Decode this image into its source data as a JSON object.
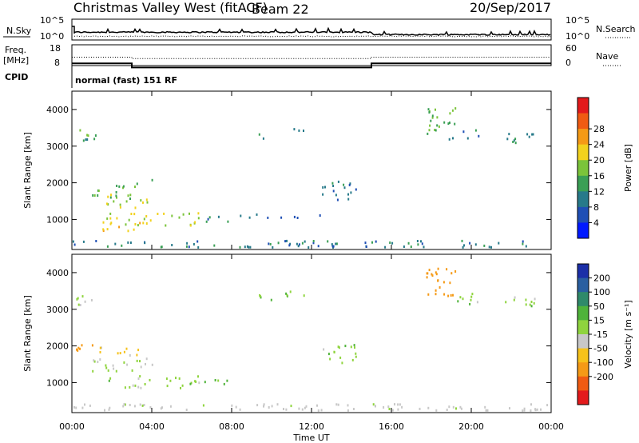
{
  "header": {
    "station": "Christmas Valley West (fitACF)",
    "beam": "Beam 22",
    "date": "20/Sep/2017"
  },
  "nsky_panel": {
    "label": "N.Sky",
    "right_label": "N.Search",
    "left_ticks": [
      "10^5",
      "10^0"
    ],
    "right_ticks": [
      "10^5",
      "10^0"
    ]
  },
  "freq_panel": {
    "label_line1": "Freq.",
    "label_line2": "[MHz]",
    "left_ticks": [
      "18",
      "8"
    ],
    "right_ticks": [
      "60",
      "0"
    ],
    "right_label": "Nave",
    "freq_mhz": [
      {
        "t": 0,
        "v": 11
      },
      {
        "t": 3,
        "v": 11
      },
      {
        "t": 3,
        "v": 9
      },
      {
        "t": 15,
        "v": 9
      },
      {
        "t": 15,
        "v": 11
      },
      {
        "t": 24,
        "v": 11
      }
    ],
    "nave": [
      {
        "t": 0,
        "v": 22
      },
      {
        "t": 3,
        "v": 22
      },
      {
        "t": 3,
        "v": 18
      },
      {
        "t": 15,
        "v": 18
      },
      {
        "t": 15,
        "v": 22
      },
      {
        "t": 24,
        "v": 22
      }
    ]
  },
  "cpid": {
    "label": "CPID",
    "text": "normal (fast) 151 RF"
  },
  "chart_data": [
    {
      "type": "heatmap",
      "name": "power",
      "xlabel": "Time UT",
      "ylabel": "Slant Range [km]",
      "xlim": [
        0,
        24
      ],
      "ylim": [
        180,
        4500
      ],
      "x_ticks": [
        {
          "v": 0,
          "label": "00:00"
        },
        {
          "v": 4,
          "label": "04:00"
        },
        {
          "v": 8,
          "label": "08:00"
        },
        {
          "v": 12,
          "label": "12:00"
        },
        {
          "v": 16,
          "label": "16:00"
        },
        {
          "v": 20,
          "label": "20:00"
        },
        {
          "v": 24,
          "label": "00:00"
        }
      ],
      "y_ticks": [
        {
          "v": 1000,
          "label": "1000"
        },
        {
          "v": 2000,
          "label": "2000"
        },
        {
          "v": 3000,
          "label": "3000"
        },
        {
          "v": 4000,
          "label": "4000"
        }
      ],
      "colorbar": {
        "label": "Power [dB]",
        "ticks": [
          "4",
          "8",
          "12",
          "16",
          "20",
          "24",
          "28"
        ],
        "colors": [
          "#0019ff",
          "#1f4fb5",
          "#277a8a",
          "#3a9f55",
          "#7bc43a",
          "#f2d21e",
          "#f59a16",
          "#f05b12",
          "#e31a1c"
        ]
      },
      "regions": [
        {
          "t0": 0.1,
          "t1": 1.2,
          "r0": 3050,
          "r1": 3400,
          "value": 14
        },
        {
          "t0": 1.2,
          "t1": 3.3,
          "r0": 1700,
          "r1": 1950,
          "value": 16
        },
        {
          "t0": 1.0,
          "t1": 4.2,
          "r0": 1250,
          "r1": 1650,
          "value": 18
        },
        {
          "t0": 3.5,
          "t1": 4.4,
          "r0": 1950,
          "r1": 2050,
          "value": 12
        },
        {
          "t0": 1.5,
          "t1": 6.5,
          "r0": 800,
          "r1": 1150,
          "value": 20
        },
        {
          "t0": 1.5,
          "t1": 3.5,
          "r0": 650,
          "r1": 900,
          "value": 24
        },
        {
          "t0": 6.5,
          "t1": 8.0,
          "r0": 900,
          "r1": 1050,
          "value": 10
        },
        {
          "t0": 8.0,
          "t1": 12.5,
          "r0": 1000,
          "r1": 1100,
          "value": 8
        },
        {
          "t0": 9.2,
          "t1": 10.2,
          "r0": 3150,
          "r1": 3350,
          "value": 12
        },
        {
          "t0": 10.6,
          "t1": 11.8,
          "r0": 3250,
          "r1": 3450,
          "value": 12
        },
        {
          "t0": 12.4,
          "t1": 14.2,
          "r0": 1500,
          "r1": 2000,
          "value": 10
        },
        {
          "t0": 17.6,
          "t1": 19.2,
          "r0": 3300,
          "r1": 4100,
          "value": 16
        },
        {
          "t0": 18.8,
          "t1": 20.5,
          "r0": 3100,
          "r1": 3400,
          "value": 10
        },
        {
          "t0": 21.5,
          "t1": 23.6,
          "r0": 3050,
          "r1": 3300,
          "value": 12
        },
        {
          "t0": 0,
          "t1": 24,
          "r0": 200,
          "r1": 380,
          "value": 10
        }
      ]
    },
    {
      "type": "heatmap",
      "name": "velocity",
      "xlabel": "Time UT",
      "ylabel": "Slant Range [km]",
      "xlim": [
        0,
        24
      ],
      "ylim": [
        180,
        4500
      ],
      "x_ticks": [
        {
          "v": 0,
          "label": "00:00"
        },
        {
          "v": 4,
          "label": "04:00"
        },
        {
          "v": 8,
          "label": "08:00"
        },
        {
          "v": 12,
          "label": "12:00"
        },
        {
          "v": 16,
          "label": "16:00"
        },
        {
          "v": 20,
          "label": "20:00"
        },
        {
          "v": 24,
          "label": "00:00"
        }
      ],
      "y_ticks": [
        {
          "v": 1000,
          "label": "1000"
        },
        {
          "v": 2000,
          "label": "2000"
        },
        {
          "v": 3000,
          "label": "3000"
        },
        {
          "v": 4000,
          "label": "4000"
        }
      ],
      "colorbar": {
        "label": "Velocity [m s⁻¹]",
        "ticks": [
          "200",
          "100",
          "50",
          "15",
          "-15",
          "-50",
          "-100",
          "-200"
        ],
        "colors": [
          "#1b2fa8",
          "#2a5fa0",
          "#2f8a6a",
          "#4fb33a",
          "#8fd43e",
          "#c8c8c8",
          "#f6c21b",
          "#f59a16",
          "#f05b12",
          "#e31a1c"
        ]
      },
      "regions": [
        {
          "t0": 0.1,
          "t1": 1.2,
          "r0": 3050,
          "r1": 3400,
          "value": 0
        },
        {
          "t0": 1.2,
          "t1": 3.3,
          "r0": 1700,
          "r1": 1950,
          "value": -60
        },
        {
          "t0": 0.2,
          "t1": 1.2,
          "r0": 1750,
          "r1": 2000,
          "value": -120
        },
        {
          "t0": 1.0,
          "t1": 4.2,
          "r0": 1250,
          "r1": 1650,
          "value": -20
        },
        {
          "t0": 1.5,
          "t1": 6.5,
          "r0": 800,
          "r1": 1150,
          "value": 0
        },
        {
          "t0": 6.5,
          "t1": 8.0,
          "r0": 900,
          "r1": 1050,
          "value": 30
        },
        {
          "t0": 9.2,
          "t1": 10.2,
          "r0": 3150,
          "r1": 3350,
          "value": 0
        },
        {
          "t0": 10.6,
          "t1": 11.8,
          "r0": 3250,
          "r1": 3450,
          "value": 0
        },
        {
          "t0": 12.4,
          "t1": 14.2,
          "r0": 1500,
          "r1": 2000,
          "value": 0
        },
        {
          "t0": 17.6,
          "t1": 19.2,
          "r0": 3300,
          "r1": 4100,
          "value": -150
        },
        {
          "t0": 18.8,
          "t1": 20.5,
          "r0": 3100,
          "r1": 3400,
          "value": 0
        },
        {
          "t0": 21.5,
          "t1": 23.6,
          "r0": 3050,
          "r1": 3300,
          "value": 0
        },
        {
          "t0": 0,
          "t1": 24,
          "r0": 200,
          "r1": 380,
          "value": -30
        }
      ]
    }
  ]
}
